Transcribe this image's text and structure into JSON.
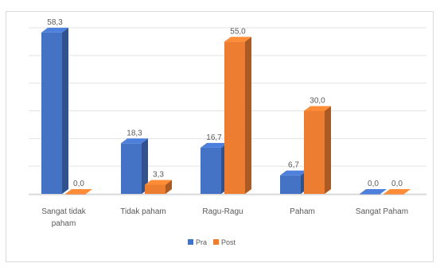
{
  "chart_data": {
    "type": "bar",
    "style": "3d-clustered-column",
    "categories": [
      "Sangat tidak paham",
      "Tidak paham",
      "Ragu-Ragu",
      "Paham",
      "Sangat Paham"
    ],
    "category_lines": [
      [
        "Sangat tidak",
        "paham"
      ],
      [
        "Tidak paham"
      ],
      [
        "Ragu-Ragu"
      ],
      [
        "Paham"
      ],
      [
        "Sangat Paham"
      ]
    ],
    "series": [
      {
        "name": "Pra",
        "color": "#4472c4",
        "values": [
          58.3,
          18.3,
          16.7,
          6.7,
          0.0
        ],
        "labels": [
          "58,3",
          "18,3",
          "16,7",
          "6,7",
          "0,0"
        ]
      },
      {
        "name": "Post",
        "color": "#ed7d31",
        "values": [
          0.0,
          3.3,
          55.0,
          30.0,
          0.0
        ],
        "labels": [
          "0,0",
          "3,3",
          "55,0",
          "30,0",
          "0,0"
        ]
      }
    ],
    "ylim": [
      0,
      60
    ],
    "grid": true,
    "legend": "bottom-center"
  }
}
